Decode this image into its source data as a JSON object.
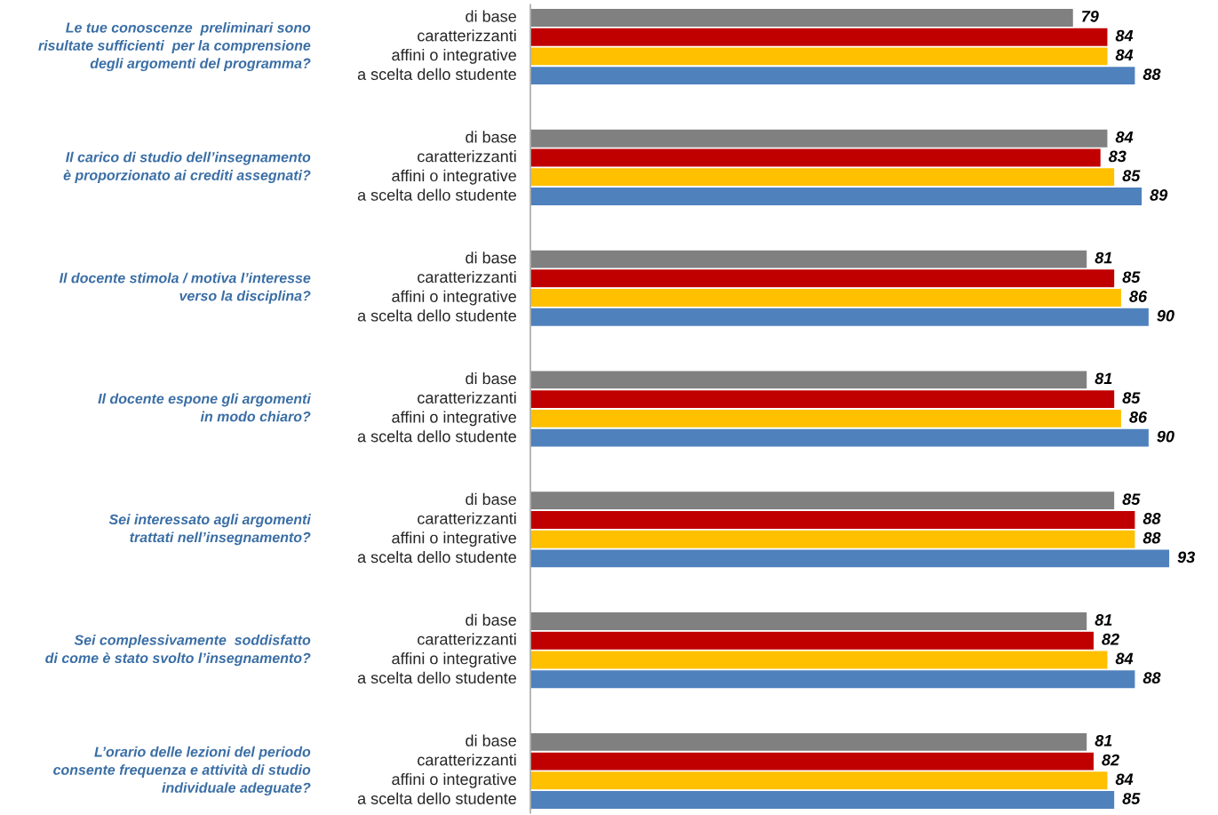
{
  "chart_data": {
    "type": "bar",
    "orientation": "horizontal",
    "data_labels": true,
    "legend": false,
    "categories": [
      "Le tue conoscenze  preliminari sono\nrisultate sufficienti  per la comprensione\ndegli argomenti del programma?",
      "Il carico di studio dell’insegnamento\nè proporzionato ai crediti assegnati?",
      "Il docente stimola / motiva l’interesse\nverso la disciplina?",
      "Il docente espone gli argomenti\nin modo chiaro?",
      "Sei interessato agli argomenti\ntrattati nell’insegnamento?",
      "Sei complessivamente  soddisfatto\ndi come è stato svolto l’insegnamento?",
      "L’orario delle lezioni del periodo\nconsente frequenza e attività di studio\nindividuale adeguate?"
    ],
    "series": [
      {
        "name": "di base",
        "color": "#808080",
        "values": [
          79,
          84,
          81,
          81,
          85,
          81,
          81
        ]
      },
      {
        "name": "caratterizzanti",
        "color": "#c00000",
        "values": [
          84,
          83,
          85,
          85,
          88,
          82,
          82
        ]
      },
      {
        "name": "affini o integrative",
        "color": "#ffc000",
        "values": [
          84,
          85,
          86,
          86,
          88,
          84,
          84
        ]
      },
      {
        "name": "a scelta dello studente",
        "color": "#4f81bd",
        "values": [
          88,
          89,
          90,
          90,
          93,
          88,
          85
        ]
      }
    ]
  }
}
